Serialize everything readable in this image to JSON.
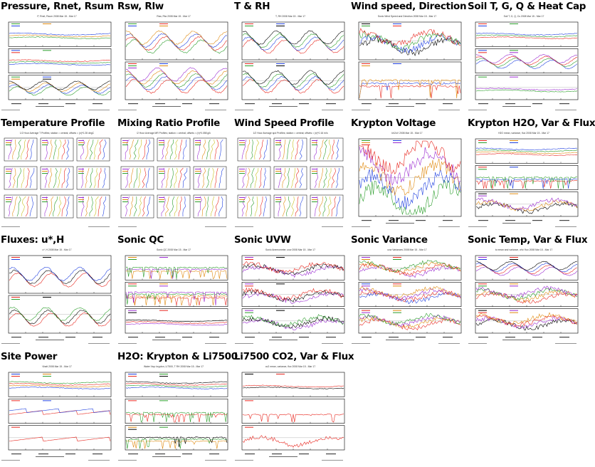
{
  "tiles": [
    {
      "label": "Pressure, Rnet, Rsum",
      "sub": "P, Rnet, Rsum 2008 Mar 15 - Mar 17"
    },
    {
      "label": "Rsw, Rlw",
      "sub": "Rsw, Rlw 2008 Mar 15 - Mar 17"
    },
    {
      "label": "T & RH",
      "sub": "T, RH 2008 Mar 15 - Mar 17"
    },
    {
      "label": "Wind speed, Direction",
      "sub": "Sonic Wind Speed and Direction 2008 Mar 15 - Mar 17"
    },
    {
      "label": "Soil T, G, Q & Heat Cap",
      "sub": "Soil T, G, Q, Cs 2008 Mar 15 - Mar 17"
    },
    {
      "label": "Temperature Profile",
      "sub": "1/2 Hour Average T Profiles; station = central; offsets = (n)*0.28 degC"
    },
    {
      "label": "Mixing Ratio Profile",
      "sub": "/2 Hour Average MR Profiles; station = central; offsets = (n)*0.058 g/k"
    },
    {
      "label": "Wind Speed Profile",
      "sub": "1/2 Hour Average spd Profiles; station = central; offsets = (n)*0.16 m/s"
    },
    {
      "label": "Krypton Voltage",
      "sub": "kh2oV 2008 Mar 15 - Mar 17"
    },
    {
      "label": "Krypton H2O, Var & Flux",
      "sub": "H2O mean, variance, flux 2008 Mar 15 - Mar 17"
    },
    {
      "label": "Fluxes: u*,H",
      "sub": "u*, H 2008 Mar 15 - Mar 17"
    },
    {
      "label": "Sonic QC",
      "sub": "Sonic QC 2008 Mar 15 - Mar 17"
    },
    {
      "label": "Sonic UVW",
      "sub": "Sonic Anemometer, uvw 2008 Mar 15 - Mar 17"
    },
    {
      "label": "Sonic Variance",
      "sub": "uvw Variances 2008 Mar 15 - Mar 17"
    },
    {
      "label": "Sonic Temp, Var & Flux",
      "sub": "tc mean and variance, w'tc' flux 2008 Mar 15 - Mar 17"
    },
    {
      "label": "Site Power",
      "sub": "Vbatt 2008 Mar 15 - Mar 17"
    },
    {
      "label": "H2O: Krypton & Li7500",
      "sub": "Water Vap: krypton, LI7500, T RH 2008 Mar 15 - Mar 17"
    },
    {
      "label": "Li7500 CO2, Var & Flux",
      "sub": "co2 mean, variance, flux 2008 Mar 15 - Mar 17"
    }
  ],
  "colors": {
    "black": "#000000",
    "red": "#e8271f",
    "green": "#2a9d2a",
    "blue": "#2040e0",
    "orange": "#e08a10",
    "purple": "#9a2ad0",
    "yellow": "#c8c020",
    "cyan": "#20a0c0"
  }
}
